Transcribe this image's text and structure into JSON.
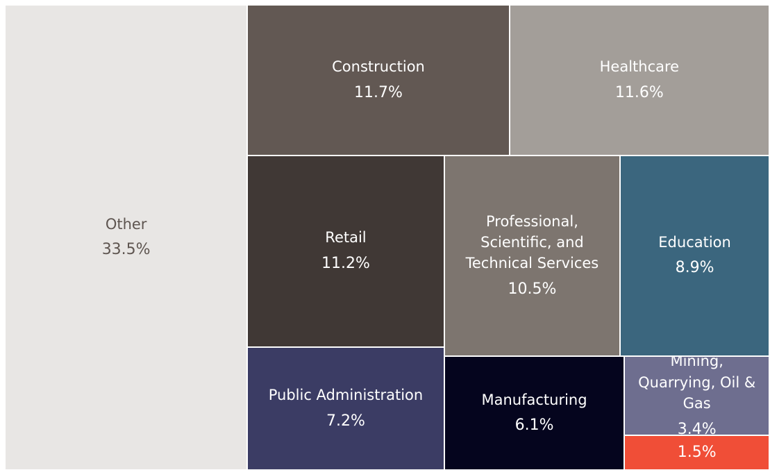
{
  "chart_data": {
    "type": "treemap",
    "categories": [
      "Other",
      "Construction",
      "Healthcare",
      "Retail",
      "Professional, Scientific, and Technical Services",
      "Education",
      "Public Administration",
      "Manufacturing",
      "Mining, Quarrying, Oil & Gas",
      null
    ],
    "values": [
      33.5,
      11.7,
      11.6,
      11.2,
      10.5,
      8.9,
      7.2,
      6.1,
      3.4,
      1.5
    ],
    "value_labels": [
      "33.5%",
      "11.7%",
      "11.6%",
      "11.2%",
      "10.5%",
      "8.9%",
      "7.2%",
      "6.1%",
      "3.4%",
      "1.5%"
    ],
    "colors": [
      "#e8e6e4",
      "#625853",
      "#a39e99",
      "#403835",
      "#7d756f",
      "#3b667e",
      "#3b3c64",
      "#05051e",
      "#6e6e8f",
      "#f04e37"
    ]
  }
}
